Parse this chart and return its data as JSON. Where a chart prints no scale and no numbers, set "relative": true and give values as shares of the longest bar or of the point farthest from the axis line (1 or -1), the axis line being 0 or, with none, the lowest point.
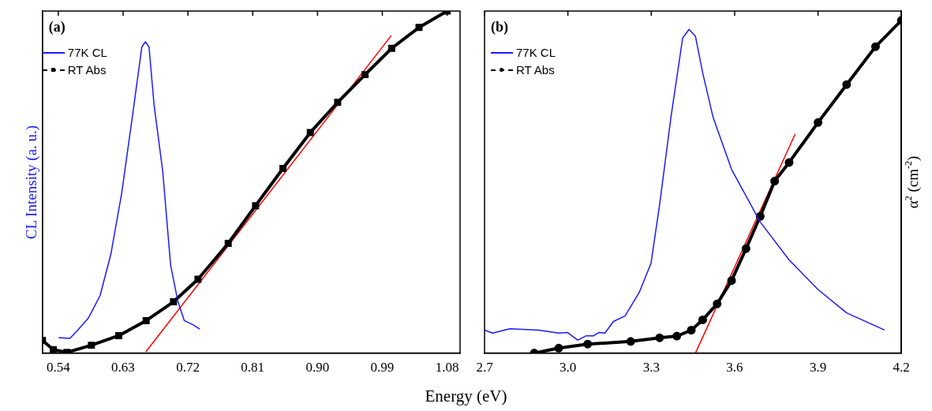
{
  "chart_data": [
    {
      "type": "line",
      "relative": true,
      "xlabel": "Energy (eV)",
      "ylabel": "CL Intensity (a. u.)",
      "xlim": [
        0.518,
        1.098
      ],
      "xticks": [
        {
          "value": 0.54,
          "label": "0.54"
        },
        {
          "value": 0.63,
          "label": "0.63"
        },
        {
          "value": 0.72,
          "label": "0.72"
        },
        {
          "value": 0.81,
          "label": "0.81"
        },
        {
          "value": 0.9,
          "label": "0.90"
        },
        {
          "value": 0.99,
          "label": "0.99"
        },
        {
          "value": 1.08,
          "label": "1.08"
        }
      ],
      "grid": false,
      "legend": "top left",
      "annotations": [
        "(a)"
      ],
      "series": [
        {
          "name": "77K CL",
          "color": "#1a1aff",
          "marker": "none",
          "x": [
            0.541,
            0.556,
            0.567,
            0.582,
            0.598,
            0.613,
            0.628,
            0.643,
            0.656,
            0.661,
            0.666,
            0.673,
            0.685,
            0.696,
            0.706,
            0.715,
            0.727,
            0.736
          ],
          "values": [
            0.045,
            0.043,
            0.067,
            0.103,
            0.168,
            0.289,
            0.467,
            0.693,
            0.895,
            0.91,
            0.895,
            0.726,
            0.532,
            0.257,
            0.152,
            0.095,
            0.083,
            0.071
          ]
        },
        {
          "name": "RT Abs",
          "color": "#000000",
          "marker": "square",
          "x": [
            0.518,
            0.533,
            0.552,
            0.586,
            0.624,
            0.662,
            0.7,
            0.734,
            0.776,
            0.814,
            0.852,
            0.89,
            0.928,
            0.966,
            1.003,
            1.041,
            1.08
          ],
          "values": [
            0.037,
            0.01,
            0.002,
            0.023,
            0.051,
            0.095,
            0.15,
            0.216,
            0.321,
            0.431,
            0.54,
            0.645,
            0.733,
            0.814,
            0.891,
            0.952,
            1.0
          ]
        },
        {
          "type": "line",
          "color": "#ff0000",
          "marker": "none",
          "x": [
            1.002,
            0.662
          ],
          "values": [
            0.927,
            0.005
          ]
        }
      ]
    },
    {
      "type": "line",
      "relative": true,
      "y2label": "α$^{2}$ (cm$^{-2}$)",
      "xlim": [
        2.7,
        4.2
      ],
      "xticks": [
        {
          "value": 2.7,
          "label": "2.7"
        },
        {
          "value": 3.0,
          "label": "3.0"
        },
        {
          "value": 3.3,
          "label": "3.3"
        },
        {
          "value": 3.6,
          "label": "3.6"
        },
        {
          "value": 3.9,
          "label": "3.9"
        },
        {
          "value": 4.2,
          "label": "4.2"
        }
      ],
      "grid": false,
      "legend": "top left",
      "annotations": [
        "(b)"
      ],
      "series": [
        {
          "name": "77K CL",
          "color": "#1a1aff",
          "marker": "none",
          "x": [
            2.7,
            2.729,
            2.791,
            2.895,
            2.967,
            2.998,
            3.035,
            3.066,
            3.092,
            3.112,
            3.133,
            3.164,
            3.206,
            3.257,
            3.299,
            3.33,
            3.371,
            3.413,
            3.436,
            3.459,
            3.485,
            3.522,
            3.589,
            3.692,
            3.796,
            3.9,
            4.003,
            4.138
          ],
          "values": [
            0.069,
            0.06,
            0.073,
            0.069,
            0.06,
            0.062,
            0.039,
            0.052,
            0.052,
            0.062,
            0.06,
            0.095,
            0.112,
            0.183,
            0.27,
            0.446,
            0.71,
            0.947,
            0.973,
            0.952,
            0.842,
            0.71,
            0.552,
            0.394,
            0.28,
            0.191,
            0.121,
            0.07
          ]
        },
        {
          "name": "RT Abs",
          "color": "#000000",
          "marker": "circle",
          "x": [
            2.879,
            2.967,
            3.071,
            3.226,
            3.33,
            3.392,
            3.444,
            3.485,
            3.537,
            3.589,
            3.641,
            3.692,
            3.744,
            3.796,
            3.9,
            4.003,
            4.107,
            4.2
          ],
          "values": [
            0.0,
            0.015,
            0.027,
            0.035,
            0.046,
            0.051,
            0.069,
            0.1,
            0.148,
            0.218,
            0.314,
            0.411,
            0.517,
            0.573,
            0.693,
            0.807,
            0.921,
            1.0
          ]
        },
        {
          "type": "line",
          "color": "#ff0000",
          "marker": "none",
          "x": [
            3.817,
            3.459
          ],
          "values": [
            0.657,
            0.0
          ]
        }
      ]
    }
  ]
}
